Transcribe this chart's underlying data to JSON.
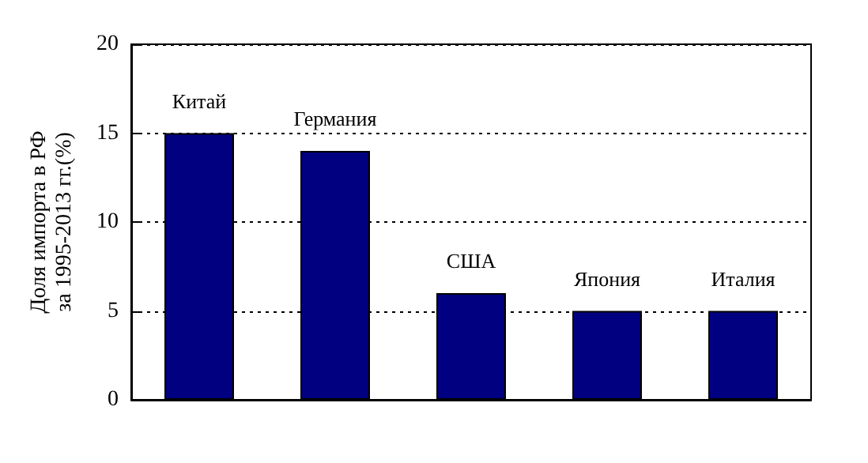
{
  "chart_data": {
    "type": "bar",
    "ylabel": "Доля импорта в РФ\nза 1995-2013 гг.(%)",
    "categories": [
      "Китай",
      "Германия",
      "США",
      "Япония",
      "Италия"
    ],
    "values": [
      15,
      14,
      6,
      5,
      5
    ],
    "color": "#000080",
    "ylim": [
      0,
      20
    ],
    "yticks": [
      0,
      5,
      10,
      15,
      20
    ],
    "grid": "y",
    "tick_labels": "y"
  }
}
